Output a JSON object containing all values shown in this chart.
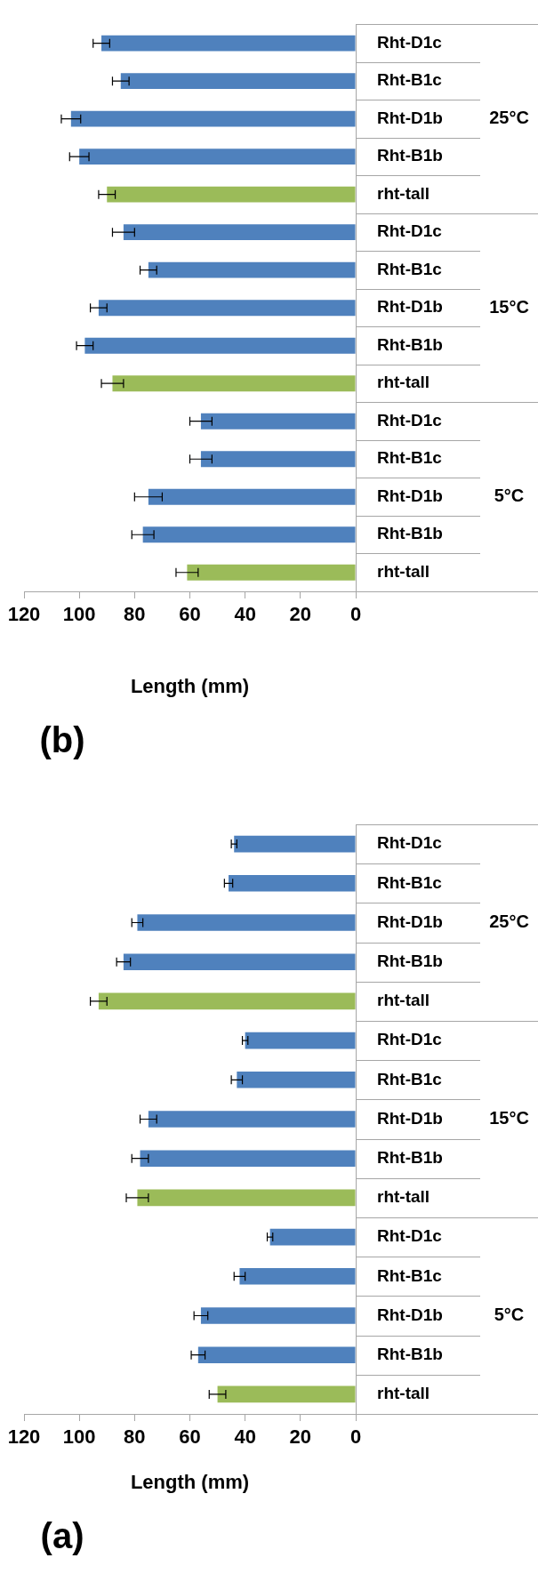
{
  "chart_data": [
    {
      "type": "bar",
      "orientation": "horizontal",
      "title": "(b)",
      "xlabel": "Length (mm)",
      "categories": [
        "Rht-D1c",
        "Rht-B1c",
        "Rht-D1b",
        "Rht-B1b",
        "rht-tall",
        "Rht-D1c",
        "Rht-B1c",
        "Rht-D1b",
        "Rht-B1b",
        "rht-tall",
        "Rht-D1c",
        "Rht-B1c",
        "Rht-D1b",
        "Rht-B1b",
        "rht-tall"
      ],
      "values": [
        92,
        85,
        103,
        100,
        90,
        84,
        75,
        93,
        98,
        88,
        56,
        56,
        75,
        77,
        61
      ],
      "errors": [
        3,
        3,
        3.5,
        3.5,
        3,
        4,
        3,
        3,
        3,
        4,
        4,
        4,
        5,
        4,
        4
      ],
      "colors": [
        "#4f81bd",
        "#4f81bd",
        "#4f81bd",
        "#4f81bd",
        "#9bbb59",
        "#4f81bd",
        "#4f81bd",
        "#4f81bd",
        "#4f81bd",
        "#9bbb59",
        "#4f81bd",
        "#4f81bd",
        "#4f81bd",
        "#4f81bd",
        "#9bbb59"
      ],
      "xlim": [
        120,
        0
      ],
      "xticks": [
        120,
        100,
        80,
        60,
        40,
        20,
        0
      ],
      "annotations": [
        "25°C",
        "15°C",
        "5°C"
      ]
    },
    {
      "type": "bar",
      "orientation": "horizontal",
      "title": "(a)",
      "xlabel": "Length (mm)",
      "categories": [
        "Rht-D1c",
        "Rht-B1c",
        "Rht-D1b",
        "Rht-B1b",
        "rht-tall",
        "Rht-D1c",
        "Rht-B1c",
        "Rht-D1b",
        "Rht-B1b",
        "rht-tall",
        "Rht-D1c",
        "Rht-B1c",
        "Rht-D1b",
        "Rht-B1b",
        "rht-tall"
      ],
      "values": [
        44,
        46,
        79,
        84,
        93,
        40,
        43,
        75,
        78,
        79,
        31,
        42,
        56,
        57,
        50
      ],
      "errors": [
        1,
        1.5,
        2,
        2.5,
        3,
        1,
        2,
        3,
        3,
        4,
        1,
        2,
        2.5,
        2.5,
        3
      ],
      "colors": [
        "#4f81bd",
        "#4f81bd",
        "#4f81bd",
        "#4f81bd",
        "#9bbb59",
        "#4f81bd",
        "#4f81bd",
        "#4f81bd",
        "#4f81bd",
        "#9bbb59",
        "#4f81bd",
        "#4f81bd",
        "#4f81bd",
        "#4f81bd",
        "#9bbb59"
      ],
      "xlim": [
        120,
        0
      ],
      "xticks": [
        120,
        100,
        80,
        60,
        40,
        20,
        0
      ],
      "annotations": [
        "25°C",
        "15°C",
        "5°C"
      ]
    }
  ]
}
